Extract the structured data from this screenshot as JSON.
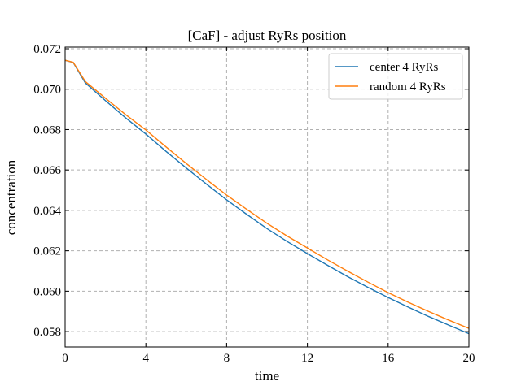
{
  "chart_data": {
    "type": "line",
    "title": "[CaF] - adjust RyRs position",
    "x_label": "time",
    "y_label": "concentration",
    "x": [
      0,
      0.4,
      1,
      2,
      3,
      4,
      5,
      6,
      7,
      8,
      9,
      10,
      11,
      12,
      13,
      14,
      15,
      16,
      17,
      18,
      19,
      20
    ],
    "series": [
      {
        "name": "center 4 RyRs",
        "color": "#1f77b4",
        "values": [
          0.07143,
          0.07132,
          0.07031,
          0.06943,
          0.06858,
          0.06778,
          0.06692,
          0.0661,
          0.0653,
          0.06452,
          0.0638,
          0.0631,
          0.06246,
          0.06186,
          0.06128,
          0.06072,
          0.06019,
          0.05969,
          0.05921,
          0.05875,
          0.05832,
          0.0579
        ]
      },
      {
        "name": "random 4 RyRs",
        "color": "#ff7f0e",
        "values": [
          0.07143,
          0.07133,
          0.07038,
          0.06955,
          0.06874,
          0.06798,
          0.06714,
          0.06632,
          0.06553,
          0.06476,
          0.06405,
          0.06336,
          0.06273,
          0.06214,
          0.06155,
          0.06099,
          0.06045,
          0.05993,
          0.05945,
          0.059,
          0.05857,
          0.05816
        ]
      }
    ],
    "xlim": [
      0,
      20
    ],
    "xticks": [
      0,
      4,
      8,
      12,
      16,
      20
    ],
    "ylim": [
      0.05724,
      0.07208
    ],
    "yticks": [
      0.058,
      {
        "value": 0.06,
        "label": "0.060"
      },
      0.062,
      0.064,
      0.066,
      0.068,
      {
        "value": 0.07,
        "label": "0.070"
      },
      0.072
    ],
    "grid": true,
    "legend": "upper right"
  }
}
